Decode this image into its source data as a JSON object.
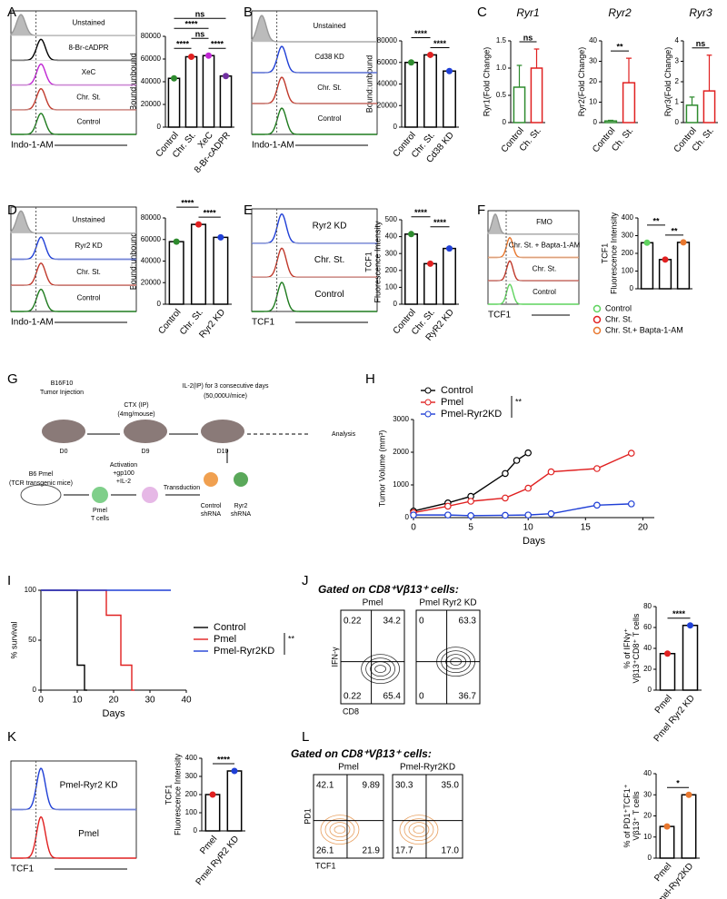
{
  "chart_data": [
    {
      "type": "bar",
      "panel": "A",
      "categories": [
        "Control",
        "Chr. St.",
        "XeC",
        "8-Br-cADPR"
      ],
      "values": [
        43000,
        62000,
        63000,
        45000
      ],
      "colors": [
        "#2e8b2e",
        "#e02020",
        "#c026d3",
        "#7030a0"
      ],
      "edge_color": "#000",
      "ylim": [
        0,
        80000
      ],
      "yticks": [
        0,
        20000,
        40000,
        60000,
        80000
      ],
      "ylabel": "Bound:unbound",
      "sig": [
        {
          "text": "ns",
          "between": [
            "Control",
            "8-Br-cADPR"
          ]
        },
        {
          "text": "****",
          "between": [
            "Control",
            "XeC"
          ]
        },
        {
          "text": "ns",
          "between": [
            "Chr. St.",
            "XeC"
          ]
        },
        {
          "text": "****",
          "between": [
            "Control",
            "Chr. St."
          ]
        },
        {
          "text": "****",
          "between": [
            "XeC",
            "8-Br-cADPR"
          ]
        }
      ]
    },
    {
      "type": "bar",
      "panel": "B",
      "categories": [
        "Control",
        "Chr. St.",
        "Cd38 KD"
      ],
      "values": [
        60000,
        67000,
        52000
      ],
      "colors": [
        "#2e8b2e",
        "#e02020",
        "#1f3fd6"
      ],
      "edge_color": "#000",
      "ylim": [
        0,
        80000
      ],
      "yticks": [
        0,
        20000,
        40000,
        60000,
        80000
      ],
      "ylabel": "Bound:unbound",
      "sig": [
        {
          "text": "****",
          "between": [
            "Control",
            "Chr. St."
          ]
        },
        {
          "text": "****",
          "between": [
            "Chr. St.",
            "Cd38 KD"
          ]
        }
      ]
    },
    {
      "type": "bar",
      "panel": "C",
      "title": "Ryr1",
      "categories": [
        "Control",
        "Ch. St."
      ],
      "values": [
        0.65,
        1.0
      ],
      "errors": [
        0.4,
        0.35
      ],
      "colors": [
        "#2e8b2e",
        "#e02020"
      ],
      "ylim": [
        0,
        1.5
      ],
      "yticks": [
        0,
        0.5,
        {
          "value": 1,
          "label": "1.0"
        },
        1.5
      ],
      "ylabel": "Ryr1(Fold Change)",
      "sig": [
        {
          "text": "ns",
          "between": [
            "Control",
            "Ch. St."
          ]
        }
      ]
    },
    {
      "type": "bar",
      "title": "Ryr2",
      "categories": [
        "Control",
        "Ch. St."
      ],
      "values": [
        0.8,
        19.5
      ],
      "errors": [
        0.3,
        12
      ],
      "colors": [
        "#2e8b2e",
        "#e02020"
      ],
      "ylim": [
        0,
        40
      ],
      "yticks": [
        0,
        10,
        20,
        30,
        40
      ],
      "ylabel": "Ryr2(Fold Change)",
      "sig": [
        {
          "text": "**",
          "between": [
            "Control",
            "Ch. St."
          ]
        }
      ]
    },
    {
      "type": "bar",
      "title": "Ryr3",
      "categories": [
        "Control",
        "Ch. St."
      ],
      "values": [
        0.85,
        1.55
      ],
      "errors": [
        0.4,
        1.75
      ],
      "colors": [
        "#2e8b2e",
        "#e02020"
      ],
      "ylim": [
        0,
        4
      ],
      "yticks": [
        0,
        1,
        2,
        3,
        4
      ],
      "ylabel": "Ryr3(Fold Change)",
      "sig": [
        {
          "text": "ns",
          "between": [
            "Control",
            "Ch. St."
          ]
        }
      ]
    },
    {
      "type": "bar",
      "panel": "D",
      "categories": [
        "Control",
        "Chr. St.",
        "Ryr2 KD"
      ],
      "values": [
        58000,
        74000,
        62000
      ],
      "colors": [
        "#2e8b2e",
        "#e02020",
        "#1f3fd6"
      ],
      "edge_color": "#000",
      "ylim": [
        0,
        80000
      ],
      "yticks": [
        0,
        20000,
        40000,
        60000,
        80000
      ],
      "ylabel": "Bound:unbound",
      "sig": [
        {
          "text": "****",
          "between": [
            "Control",
            "Chr. St."
          ]
        },
        {
          "text": "****",
          "between": [
            "Chr. St.",
            "Ryr2 KD"
          ]
        }
      ]
    },
    {
      "type": "bar",
      "panel": "E",
      "categories": [
        "Control",
        "Chr. St.",
        "RyR2 KD"
      ],
      "values": [
        415,
        240,
        330
      ],
      "colors": [
        "#2e8b2e",
        "#e02020",
        "#1f3fd6"
      ],
      "edge_color": "#000",
      "ylim": [
        0,
        500
      ],
      "yticks": [
        0,
        100,
        200,
        300,
        400,
        500
      ],
      "ylabel": [
        "TCF1",
        "Fluorescence Intensity"
      ],
      "sig": [
        {
          "text": "****",
          "between": [
            "Control",
            "Chr. St."
          ]
        },
        {
          "text": "****",
          "between": [
            "Chr. St.",
            "RyR2 KD"
          ]
        }
      ]
    },
    {
      "type": "bar",
      "panel": "F",
      "categories": [
        "Control",
        "Chr. St.",
        "Chr. St.+ Bapta-1-AM"
      ],
      "values": [
        260,
        165,
        262
      ],
      "colors": [
        "#5fd35f",
        "#e02020",
        "#e8772e"
      ],
      "edge_color": "#000",
      "ylim": [
        0,
        400
      ],
      "yticks": [
        0,
        100,
        200,
        300,
        400
      ],
      "ylabel": [
        "TCF1",
        "Fluorescence Intensity"
      ],
      "legend": "below",
      "sig": [
        {
          "text": "**",
          "between": [
            "Control",
            "Chr. St."
          ]
        },
        {
          "text": "**",
          "between": [
            "Chr. St.",
            "Chr. St.+ Bapta-1-AM"
          ]
        }
      ]
    },
    {
      "type": "line",
      "panel": "H",
      "xlabel": "Days",
      "ylabel": "Tumor Volume (mm³)",
      "xlim": [
        0,
        21
      ],
      "xticks": [
        0,
        5,
        10,
        15,
        20
      ],
      "ylim": [
        0,
        3000
      ],
      "yticks": [
        0,
        1000,
        2000,
        3000
      ],
      "legend": "upper left",
      "annotation": "**",
      "series": [
        {
          "name": "Control",
          "color": "#000",
          "x": [
            0,
            3,
            5,
            8,
            9,
            10
          ],
          "values": [
            200,
            450,
            650,
            1350,
            1750,
            1980
          ]
        },
        {
          "name": "Pmel",
          "color": "#e02020",
          "x": [
            0,
            3,
            5,
            8,
            10,
            12,
            16,
            19
          ],
          "values": [
            150,
            350,
            500,
            600,
            900,
            1400,
            1500,
            1970
          ]
        },
        {
          "name": "Pmel-Ryr2KD",
          "color": "#1f3fd6",
          "x": [
            0,
            3,
            5,
            8,
            10,
            12,
            16,
            19
          ],
          "values": [
            80,
            80,
            60,
            70,
            80,
            120,
            380,
            420
          ]
        }
      ]
    },
    {
      "type": "line",
      "step": true,
      "panel": "I",
      "xlabel": "Days",
      "ylabel": "% survival",
      "xlim": [
        0,
        40
      ],
      "xticks": [
        0,
        10,
        20,
        30,
        40
      ],
      "ylim": [
        0,
        100
      ],
      "yticks": [
        0,
        50,
        100
      ],
      "legend": "right",
      "annotation": "**",
      "series": [
        {
          "name": "Control",
          "color": "#000",
          "x": [
            0,
            10,
            12
          ],
          "values": [
            100,
            25,
            0
          ]
        },
        {
          "name": "Pmel",
          "color": "#e02020",
          "x": [
            0,
            18,
            22,
            25
          ],
          "values": [
            100,
            75,
            25,
            0
          ]
        },
        {
          "name": "Pmel-Ryr2KD",
          "color": "#1f3fd6",
          "x": [
            0,
            35
          ],
          "values": [
            100,
            100
          ]
        }
      ]
    },
    {
      "type": "bar",
      "panel": "J",
      "categories": [
        "Pmel",
        "Pmel Ryr2 KD"
      ],
      "values": [
        35,
        62
      ],
      "colors": [
        "#e02020",
        "#1f3fd6"
      ],
      "edge_color": "#000",
      "ylim": [
        0,
        80
      ],
      "yticks": [
        0,
        20,
        40,
        60,
        80
      ],
      "ylabel": [
        "% of IFNγ⁺",
        "Vβ13⁺CD8⁺ T cells"
      ],
      "sig": [
        {
          "text": "****",
          "between": [
            "Pmel",
            "Pmel Ryr2 KD"
          ]
        }
      ]
    },
    {
      "type": "bar",
      "panel": "K",
      "categories": [
        "Pmel",
        "Pmel RyR2 KD"
      ],
      "values": [
        200,
        330
      ],
      "colors": [
        "#e02020",
        "#1f3fd6"
      ],
      "edge_color": "#000",
      "ylim": [
        0,
        400
      ],
      "yticks": [
        0,
        100,
        200,
        300,
        400
      ],
      "ylabel": [
        "TCF1",
        "Fluorescence Intensity"
      ],
      "sig": [
        {
          "text": "****",
          "between": [
            "Pmel",
            "Pmel RyR2 KD"
          ]
        }
      ]
    },
    {
      "type": "bar",
      "panel": "L",
      "categories": [
        "Pmel",
        "Pmel-Ryr2KD"
      ],
      "values": [
        15,
        30
      ],
      "colors": [
        "#e8772e",
        "#e8772e"
      ],
      "edge_color": "#000",
      "ylim": [
        0,
        40
      ],
      "yticks": [
        0,
        10,
        20,
        30,
        40
      ],
      "ylabel": [
        "% of PD1⁺TCF1⁺",
        "Vβ13⁺ T cells"
      ],
      "sig": [
        {
          "text": "*",
          "between": [
            "Pmel",
            "Pmel-Ryr2KD"
          ]
        }
      ]
    }
  ],
  "histograms": [
    {
      "labels": [
        "Unstained",
        "8-Br-cADPR",
        "XeC",
        "Chr. St.",
        "Control"
      ],
      "colors": [
        "#999",
        "#000",
        "#c026d3",
        "#c0392b",
        "#1e7b1e"
      ],
      "fill_first": true,
      "xlabel": "Indo-1-AM"
    },
    {
      "labels": [
        "Unstained",
        "Cd38 KD",
        "Chr. St.",
        "Control"
      ],
      "colors": [
        "#999",
        "#1f3fd6",
        "#c0392b",
        "#1e7b1e"
      ],
      "fill_first": true,
      "xlabel": "Indo-1-AM"
    },
    {
      "labels": [
        "Unstained",
        "Ryr2 KD",
        "Chr. St.",
        "Control"
      ],
      "colors": [
        "#999",
        "#1f3fd6",
        "#c0392b",
        "#1e7b1e"
      ],
      "fill_first": true,
      "xlabel": "Indo-1-AM"
    },
    {
      "labels": [
        "Ryr2 KD",
        "Chr. St.",
        "Control"
      ],
      "colors": [
        "#1f3fd6",
        "#c0392b",
        "#1e7b1e"
      ],
      "fill_first": false,
      "xlabel": "TCF1"
    },
    {
      "labels": [
        "FMO",
        "Chr. St. + Bapta-1-AM",
        "Chr. St.",
        "Control"
      ],
      "colors": [
        "#999",
        "#e8772e",
        "#c0392b",
        "#5fd35f"
      ],
      "fill_first": true,
      "xlabel": "TCF1"
    },
    {
      "labels": [
        "Pmel-Ryr2 KD",
        "Pmel"
      ],
      "colors": [
        "#1f3fd6",
        "#e02020"
      ],
      "fill_first": false,
      "xlabel": "TCF1"
    }
  ],
  "flow_plots": [
    {
      "title": "Gated on CD8⁺Vβ13⁺ cells:",
      "xlabel": "CD8",
      "ylabel": "IFN-γ",
      "color": "#333",
      "plots": [
        {
          "name": "Pmel",
          "quadrants": [
            "0.22",
            "34.2",
            "0.22",
            "65.4"
          ]
        },
        {
          "name": "Pmel Ryr2 KD",
          "quadrants": [
            "0",
            "63.3",
            "0",
            "36.7"
          ]
        }
      ]
    },
    {
      "title": "Gated on CD8⁺Vβ13⁺ cells:",
      "xlabel": "TCF1",
      "ylabel": "PD1",
      "color": "#e8a060",
      "plots": [
        {
          "name": "Pmel",
          "quadrants": [
            "42.1",
            "9.89",
            "26.1",
            "21.9"
          ]
        },
        {
          "name": "Pmel-Ryr2KD",
          "quadrants": [
            "30.3",
            "35.0",
            "17.7",
            "17.0"
          ]
        }
      ]
    }
  ],
  "schematic": {
    "panel": "G",
    "texts": [
      "B16F10",
      "Tumor Injection",
      "IL-2(IP) for 3 consecutive days",
      "(50,000U/mice)",
      "CTX (IP)",
      "(4mg/mouse)",
      "Analysis",
      "D0",
      "D9",
      "D10",
      "B6 Pmel",
      "(TCR transgenic mice)",
      "Activation",
      "+gp100",
      "+IL-2",
      "Transduction",
      "Pmel",
      "T cells",
      "Control",
      "shRNA",
      "Ryr2",
      "shRNA"
    ]
  }
}
